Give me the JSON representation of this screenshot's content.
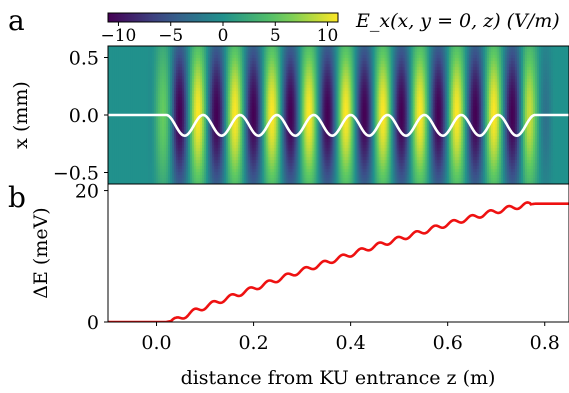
{
  "panel_labels": {
    "a": "a",
    "b": "b"
  },
  "colorbar": {
    "label": "E_x(x, y = 0, z) (V/m)",
    "ticks": [
      {
        "value": -10,
        "label": "−10"
      },
      {
        "value": -5,
        "label": "−5"
      },
      {
        "value": 0,
        "label": "0"
      },
      {
        "value": 5,
        "label": "5"
      },
      {
        "value": 10,
        "label": "10"
      }
    ],
    "range": [
      -11,
      11
    ],
    "colormap": "viridis",
    "colors": [
      "#440154",
      "#3b528b",
      "#21918c",
      "#5ec962",
      "#fde725"
    ]
  },
  "chart_data": [
    {
      "type": "heatmap",
      "panel": "a",
      "ylabel": "x (mm)",
      "xlim": [
        -0.1,
        0.85
      ],
      "ylim": [
        -0.6,
        0.6
      ],
      "yticks": [
        {
          "value": 0.5,
          "label": "0.5"
        },
        {
          "value": 0.0,
          "label": "0.0"
        },
        {
          "value": -0.5,
          "label": "−0.5"
        }
      ],
      "field": {
        "z_start": 0.0,
        "z_end": 0.8,
        "period_m": 0.0762,
        "peak_V_per_m": 11,
        "transverse_width_mm": 0.45
      },
      "beam_path": {
        "color": "#ffffff",
        "amplitude_mm": 0.18,
        "oscillation_start_z": 0.02,
        "oscillation_end_z": 0.78,
        "periods": 10
      }
    },
    {
      "type": "line",
      "panel": "b",
      "xlabel": "distance from KU entrance z (m)",
      "ylabel": "ΔE (meV)",
      "xlim": [
        -0.1,
        0.85
      ],
      "ylim": [
        0,
        21
      ],
      "xticks": [
        {
          "value": 0.0,
          "label": "0.0"
        },
        {
          "value": 0.2,
          "label": "0.2"
        },
        {
          "value": 0.4,
          "label": "0.4"
        },
        {
          "value": 0.6,
          "label": "0.6"
        },
        {
          "value": 0.8,
          "label": "0.8"
        }
      ],
      "yticks": [
        {
          "value": 0,
          "label": "0"
        },
        {
          "value": 20,
          "label": "20"
        }
      ],
      "series": [
        {
          "color": "#ee1111",
          "x": [
            -0.1,
            0.0,
            0.02,
            0.04,
            0.08,
            0.12,
            0.16,
            0.2,
            0.24,
            0.28,
            0.32,
            0.36,
            0.4,
            0.44,
            0.48,
            0.52,
            0.56,
            0.6,
            0.64,
            0.68,
            0.72,
            0.76,
            0.78,
            0.85
          ],
          "y": [
            0,
            0,
            0,
            0.3,
            1.7,
            2.9,
            4.0,
            5.1,
            6.2,
            7.3,
            8.3,
            9.3,
            10.3,
            11.3,
            12.2,
            13.1,
            14.0,
            14.9,
            15.7,
            16.5,
            17.2,
            17.8,
            18.0,
            18.0
          ]
        }
      ]
    }
  ]
}
